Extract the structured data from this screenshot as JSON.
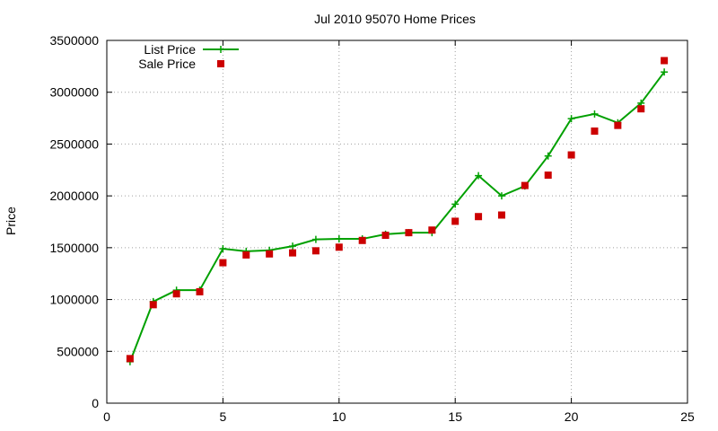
{
  "chart_data": {
    "type": "line",
    "title": "Jul 2010 95070 Home Prices",
    "xlabel": "",
    "ylabel": "Price",
    "xlim": [
      0,
      25
    ],
    "ylim": [
      0,
      3500000
    ],
    "xticks": [
      0,
      5,
      10,
      15,
      20,
      25
    ],
    "yticks": [
      0,
      500000,
      1000000,
      1500000,
      2000000,
      2500000,
      3000000,
      3500000
    ],
    "xtick_labels": [
      "0",
      "5",
      "10",
      "15",
      "20",
      "25"
    ],
    "ytick_labels": [
      "0",
      "500000",
      "1000000",
      "1500000",
      "2000000",
      "2500000",
      "3000000",
      "3500000"
    ],
    "grid": true,
    "legend_position": "top-left",
    "series": [
      {
        "name": "List Price",
        "style": "line-plus",
        "color": "#00a000",
        "x": [
          1,
          2,
          3,
          4,
          5,
          6,
          7,
          8,
          9,
          10,
          11,
          12,
          13,
          14,
          15,
          16,
          17,
          18,
          19,
          20,
          21,
          22,
          23,
          24
        ],
        "y": [
          400000,
          980000,
          1090000,
          1090000,
          1490000,
          1465000,
          1475000,
          1515000,
          1580000,
          1585000,
          1585000,
          1630000,
          1645000,
          1645000,
          1920000,
          2195000,
          2000000,
          2095000,
          2385000,
          2745000,
          2790000,
          2705000,
          2895000,
          3195000
        ]
      },
      {
        "name": "Sale Price",
        "style": "square-marker",
        "color": "#cc0000",
        "x": [
          1,
          2,
          3,
          4,
          5,
          6,
          7,
          8,
          9,
          10,
          11,
          12,
          13,
          14,
          15,
          16,
          17,
          18,
          19,
          20,
          21,
          22,
          23,
          24
        ],
        "y": [
          430000,
          950000,
          1055000,
          1075000,
          1355000,
          1430000,
          1440000,
          1450000,
          1470000,
          1505000,
          1570000,
          1620000,
          1645000,
          1670000,
          1755000,
          1800000,
          1815000,
          2100000,
          2200000,
          2395000,
          2625000,
          2680000,
          2840000,
          3305000
        ]
      }
    ]
  }
}
